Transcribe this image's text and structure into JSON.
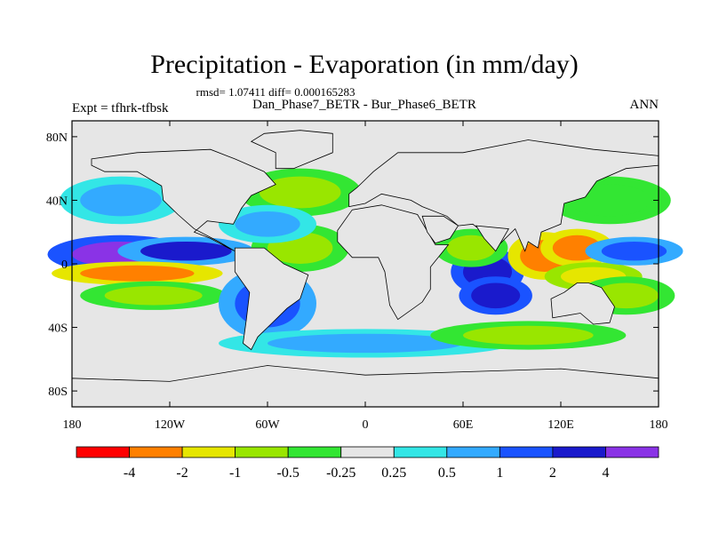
{
  "chart_data": {
    "type": "heatmap",
    "title": "Precipitation - Evaporation (in mm/day)",
    "stats_line": "rmsd= 1.07411 diff= 0.000165283",
    "subtitle": "Dan_Phase7_BETR - Bur_Phase6_BETR",
    "left_label": "Expt = tfhrk-tfbsk",
    "right_label": "ANN",
    "x_ticks": [
      "180",
      "120W",
      "60W",
      "0",
      "60E",
      "120E",
      "180"
    ],
    "x_tick_values": [
      -180,
      -120,
      -60,
      0,
      60,
      120,
      180
    ],
    "y_ticks": [
      "80N",
      "40N",
      "0",
      "40S",
      "80S"
    ],
    "y_tick_values": [
      80,
      40,
      0,
      -40,
      -80
    ],
    "xlim": [
      -180,
      180
    ],
    "ylim": [
      -90,
      90
    ],
    "colorbar": {
      "colors": [
        "#ff0000",
        "#ff8000",
        "#e6e600",
        "#99e600",
        "#33e633",
        "#e6e6e6",
        "#33e6e6",
        "#33aaff",
        "#1a53ff",
        "#1a1acc",
        "#8a33e6"
      ],
      "labels": [
        "-4",
        "-2",
        "-1",
        "-0.5",
        "-0.25",
        "0.25",
        "0.5",
        "1",
        "2",
        "4"
      ]
    },
    "field_features": [
      {
        "lon": -150,
        "lat": 6,
        "w": 30,
        "h": 8,
        "v": 4
      },
      {
        "lon": -110,
        "lat": 8,
        "w": 28,
        "h": 6,
        "v": 2
      },
      {
        "lon": -140,
        "lat": -6,
        "w": 35,
        "h": 5,
        "v": -3
      },
      {
        "lon": -130,
        "lat": -20,
        "w": 30,
        "h": 6,
        "v": -1
      },
      {
        "lon": -60,
        "lat": -25,
        "w": 20,
        "h": 15,
        "v": 1.5
      },
      {
        "lon": -40,
        "lat": 10,
        "w": 20,
        "h": 10,
        "v": -0.8
      },
      {
        "lon": -150,
        "lat": 40,
        "w": 25,
        "h": 10,
        "v": 0.7
      },
      {
        "lon": -40,
        "lat": 45,
        "w": 25,
        "h": 10,
        "v": -0.6
      },
      {
        "lon": 75,
        "lat": -5,
        "w": 15,
        "h": 10,
        "v": 3
      },
      {
        "lon": 80,
        "lat": -20,
        "w": 15,
        "h": 8,
        "v": 2.5
      },
      {
        "lon": 65,
        "lat": 10,
        "w": 15,
        "h": 8,
        "v": -0.8
      },
      {
        "lon": 110,
        "lat": 5,
        "w": 15,
        "h": 10,
        "v": -3
      },
      {
        "lon": 130,
        "lat": 10,
        "w": 15,
        "h": 8,
        "v": -2.5
      },
      {
        "lon": 140,
        "lat": -8,
        "w": 20,
        "h": 6,
        "v": -1.5
      },
      {
        "lon": 165,
        "lat": 8,
        "w": 20,
        "h": 6,
        "v": 1.5
      },
      {
        "lon": 160,
        "lat": -20,
        "w": 20,
        "h": 8,
        "v": -1
      },
      {
        "lon": 0,
        "lat": -50,
        "w": 60,
        "h": 6,
        "v": 0.6
      },
      {
        "lon": 100,
        "lat": -45,
        "w": 40,
        "h": 6,
        "v": -0.6
      },
      {
        "lon": 150,
        "lat": 40,
        "w": 25,
        "h": 10,
        "v": -0.5
      },
      {
        "lon": -60,
        "lat": 25,
        "w": 20,
        "h": 8,
        "v": 0.6
      }
    ]
  }
}
